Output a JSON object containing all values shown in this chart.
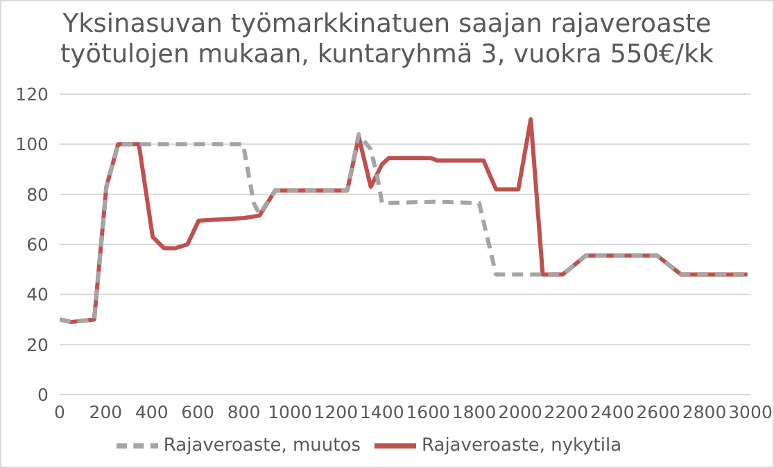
{
  "chart_data": {
    "type": "line",
    "title": "Yksinasuvan työmarkkinatuen saajan rajaveroaste työtulojen mukaan, kuntaryhmä 3, vuokra 550€/kk",
    "xlim": [
      0,
      3000
    ],
    "xticks": [
      0,
      200,
      400,
      600,
      800,
      1000,
      1200,
      1400,
      1600,
      1800,
      2000,
      2200,
      2400,
      2600,
      2800,
      3000
    ],
    "ylim": [
      0,
      120
    ],
    "yticks": [
      0,
      20,
      40,
      60,
      80,
      100,
      120
    ],
    "grid": "y",
    "legend": "bottom",
    "marker": "none",
    "series": [
      {
        "name": "Rajaveroaste, nykytila",
        "color": "#c0504d",
        "line_style": "solid",
        "x": [
          0,
          50,
          150,
          203,
          254,
          344,
          404,
          453,
          503,
          555,
          604,
          705,
          800,
          868,
          936,
          1249,
          1299,
          1351,
          1400,
          1430,
          1611,
          1641,
          1841,
          1895,
          1992,
          2046,
          2098,
          2185,
          2285,
          2595,
          2698,
          2987
        ],
        "values": [
          30,
          29,
          30,
          83,
          100,
          100,
          63,
          58.5,
          58.5,
          60,
          69.5,
          70,
          70.5,
          71.5,
          81.5,
          81.5,
          103,
          83,
          92,
          94.5,
          94.5,
          93.5,
          93.5,
          82,
          82,
          110,
          48,
          48,
          55.5,
          55.5,
          48,
          48
        ]
      },
      {
        "name": "Rajaveroaste, muutos",
        "color": "#a5a5a5",
        "line_style": "dashed",
        "x": [
          0,
          50,
          150,
          203,
          254,
          797,
          843,
          868,
          936,
          1249,
          1299,
          1351,
          1380,
          1400,
          1630,
          1822,
          1895,
          2098,
          2185,
          2285,
          2595,
          2698,
          2987
        ],
        "values": [
          30,
          29,
          30,
          83,
          100,
          100,
          76.5,
          72,
          81.5,
          81.5,
          104,
          98,
          86.8,
          76.5,
          77,
          76.5,
          48,
          48,
          48,
          55.5,
          55.5,
          48,
          48
        ]
      }
    ]
  }
}
